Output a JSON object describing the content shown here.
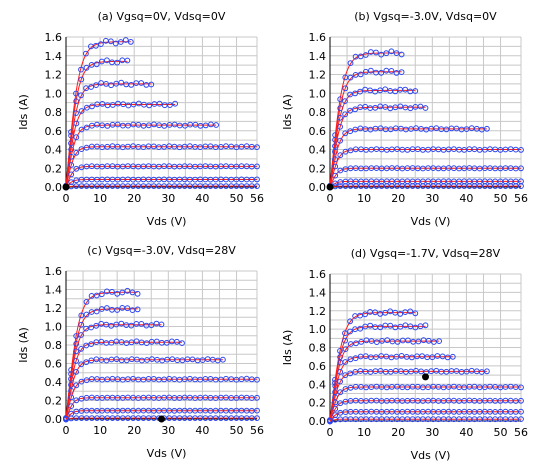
{
  "chart_data": [
    {
      "type": "scatter",
      "title": "(a) Vgsq=0V, Vdsq=0V",
      "xlabel": "Vds (V)",
      "ylabel": "Ids (A)",
      "xlim": [
        0,
        56
      ],
      "ylim": [
        0,
        1.6
      ],
      "xticks": [
        "0",
        "10",
        "20",
        "30",
        "40",
        "50",
        "56"
      ],
      "yticks": [
        "0.0",
        "0.2",
        "0.4",
        "0.6",
        "0.8",
        "1.0",
        "1.2",
        "1.4",
        "1.6"
      ],
      "grid": true,
      "quiescent_point": [
        0,
        0
      ],
      "curves": [
        {
          "xmax": 19,
          "imax": 1.55,
          "vk": 3.8
        },
        {
          "xmax": 18,
          "imax": 1.34,
          "vk": 3.5
        },
        {
          "xmax": 25,
          "imax": 1.1,
          "vk": 3.2
        },
        {
          "xmax": 32,
          "imax": 0.88,
          "vk": 3.0
        },
        {
          "xmax": 44,
          "imax": 0.66,
          "vk": 2.8
        },
        {
          "xmax": 56,
          "imax": 0.43,
          "vk": 2.5
        },
        {
          "xmax": 56,
          "imax": 0.22,
          "vk": 2.2
        },
        {
          "xmax": 56,
          "imax": 0.08,
          "vk": 2.0
        },
        {
          "xmax": 56,
          "imax": 0.01,
          "vk": 1.8
        }
      ]
    },
    {
      "type": "scatter",
      "title": "(b) Vgsq=-3.0V, Vdsq=0V",
      "xlabel": "Vds (V)",
      "ylabel": "Ids (A)",
      "xlim": [
        0,
        56
      ],
      "ylim": [
        0,
        1.6
      ],
      "xticks": [
        "0",
        "10",
        "20",
        "30",
        "40",
        "50",
        "56"
      ],
      "yticks": [
        "0.0",
        "0.2",
        "0.4",
        "0.6",
        "0.8",
        "1.0",
        "1.2",
        "1.4",
        "1.6"
      ],
      "grid": true,
      "quiescent_point": [
        0,
        0
      ],
      "curves": [
        {
          "xmax": 21,
          "imax": 1.43,
          "vk": 3.8
        },
        {
          "xmax": 21,
          "imax": 1.23,
          "vk": 3.5
        },
        {
          "xmax": 25,
          "imax": 1.03,
          "vk": 3.2
        },
        {
          "xmax": 28,
          "imax": 0.85,
          "vk": 3.0
        },
        {
          "xmax": 46,
          "imax": 0.62,
          "vk": 2.8
        },
        {
          "xmax": 56,
          "imax": 0.4,
          "vk": 2.5
        },
        {
          "xmax": 56,
          "imax": 0.2,
          "vk": 2.2
        },
        {
          "xmax": 56,
          "imax": 0.06,
          "vk": 2.0
        },
        {
          "xmax": 56,
          "imax": 0.01,
          "vk": 1.8
        }
      ]
    },
    {
      "type": "scatter",
      "title": "(c) Vgsq=-3.0V, Vdsq=28V",
      "xlabel": "Vds (V)",
      "ylabel": "Ids (A)",
      "xlim": [
        0,
        56
      ],
      "ylim": [
        0,
        1.6
      ],
      "xticks": [
        "0",
        "10",
        "20",
        "30",
        "40",
        "50",
        "56"
      ],
      "yticks": [
        "0.0",
        "0.2",
        "0.4",
        "0.6",
        "0.8",
        "1.0",
        "1.2",
        "1.4",
        "1.6"
      ],
      "grid": true,
      "quiescent_point": [
        28,
        0
      ],
      "curves": [
        {
          "xmax": 21,
          "imax": 1.37,
          "vk": 3.8
        },
        {
          "xmax": 21,
          "imax": 1.19,
          "vk": 3.5
        },
        {
          "xmax": 28,
          "imax": 1.02,
          "vk": 3.2
        },
        {
          "xmax": 34,
          "imax": 0.83,
          "vk": 3.0
        },
        {
          "xmax": 46,
          "imax": 0.64,
          "vk": 2.8
        },
        {
          "xmax": 56,
          "imax": 0.43,
          "vk": 2.5
        },
        {
          "xmax": 56,
          "imax": 0.23,
          "vk": 2.2
        },
        {
          "xmax": 56,
          "imax": 0.09,
          "vk": 2.0
        },
        {
          "xmax": 56,
          "imax": 0.01,
          "vk": 1.8
        }
      ]
    },
    {
      "type": "scatter",
      "title": "(d) Vgsq=-1.7V, Vdsq=28V",
      "xlabel": "Vds (V)",
      "ylabel": "Ids (A)",
      "xlim": [
        0,
        56
      ],
      "ylim": [
        0,
        1.6
      ],
      "xticks": [
        "0",
        "10",
        "20",
        "30",
        "40",
        "50",
        "56"
      ],
      "yticks": [
        "0.0",
        "0.2",
        "0.4",
        "0.6",
        "0.8",
        "1.0",
        "1.2",
        "1.4",
        "1.6"
      ],
      "grid": true,
      "quiescent_point": [
        28,
        0.48
      ],
      "curves": [
        {
          "xmax": 25,
          "imax": 1.18,
          "vk": 3.8
        },
        {
          "xmax": 28,
          "imax": 1.03,
          "vk": 3.5
        },
        {
          "xmax": 32,
          "imax": 0.87,
          "vk": 3.2
        },
        {
          "xmax": 36,
          "imax": 0.7,
          "vk": 3.0
        },
        {
          "xmax": 46,
          "imax": 0.54,
          "vk": 2.8
        },
        {
          "xmax": 56,
          "imax": 0.37,
          "vk": 2.5
        },
        {
          "xmax": 56,
          "imax": 0.22,
          "vk": 2.2
        },
        {
          "xmax": 56,
          "imax": 0.1,
          "vk": 2.0
        },
        {
          "xmax": 56,
          "imax": 0.02,
          "vk": 1.8
        }
      ]
    }
  ]
}
